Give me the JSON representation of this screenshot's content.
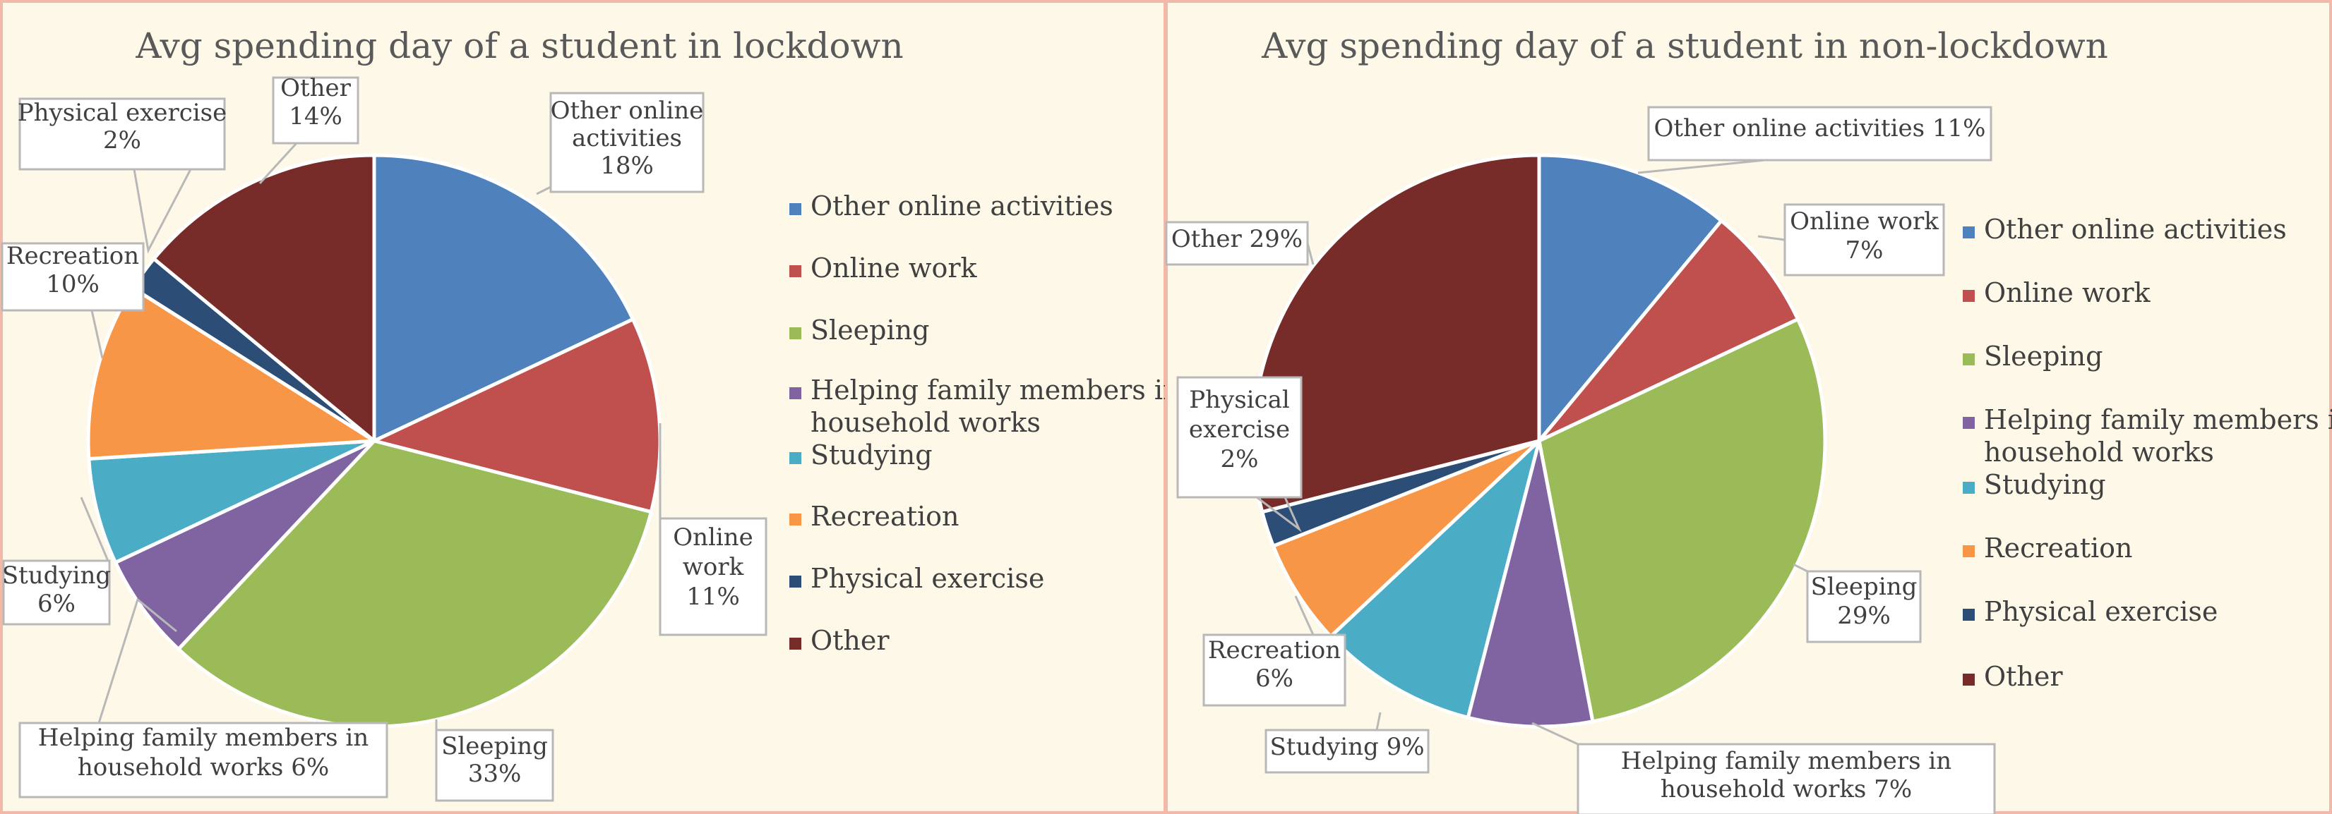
{
  "chart_data": [
    {
      "type": "pie",
      "title": "Avg spending day of a student in lockdown",
      "categories": [
        "Other online activities",
        "Online work",
        "Sleeping",
        "Helping family members in household works",
        "Studying",
        "Recreation",
        "Physical exercise",
        "Other"
      ],
      "values": [
        18,
        11,
        33,
        6,
        6,
        10,
        2,
        14
      ],
      "unit": "%",
      "data_labels": [
        [
          "Other online",
          "activities",
          "18%"
        ],
        [
          "Online",
          "work",
          "11%"
        ],
        [
          "Sleeping",
          "33%"
        ],
        [
          "Helping family members in",
          "household works  6%"
        ],
        [
          "Studying",
          "6%"
        ],
        [
          "Recreation",
          "10%"
        ],
        [
          "Physical exercise",
          "2%"
        ],
        [
          "Other",
          "14%"
        ]
      ],
      "legend": [
        "Other online activities",
        "Online work",
        "Sleeping",
        "Helping family members in household works",
        "Studying",
        "Recreation",
        "Physical exercise",
        "Other"
      ],
      "legend_position": "right"
    },
    {
      "type": "pie",
      "title": "Avg spending day of a student in non-lockdown",
      "categories": [
        "Other online activities",
        "Online work",
        "Sleeping",
        "Helping family members in household works",
        "Studying",
        "Recreation",
        "Physical exercise",
        "Other"
      ],
      "values": [
        11,
        7,
        29,
        7,
        9,
        6,
        2,
        29
      ],
      "unit": "%",
      "data_labels": [
        [
          "Other online activities 11%"
        ],
        [
          "Online work",
          "7%"
        ],
        [
          "Sleeping",
          "29%"
        ],
        [
          "Helping family members in",
          "household works 7%"
        ],
        [
          "Studying 9%"
        ],
        [
          "Recreation",
          "6%"
        ],
        [
          "Physical",
          "exercise",
          "2%"
        ],
        [
          "Other 29%"
        ]
      ],
      "legend": [
        "Other online activities",
        "Online work",
        "Sleeping",
        "Helping family members in household works",
        "Studying",
        "Recreation",
        "Physical exercise",
        "Other"
      ],
      "legend_position": "right"
    }
  ],
  "colors": [
    "#4f81bd",
    "#c0504d",
    "#9bbb59",
    "#8064a2",
    "#4bacc6",
    "#f79646",
    "#2c4d75",
    "#772c2a"
  ]
}
